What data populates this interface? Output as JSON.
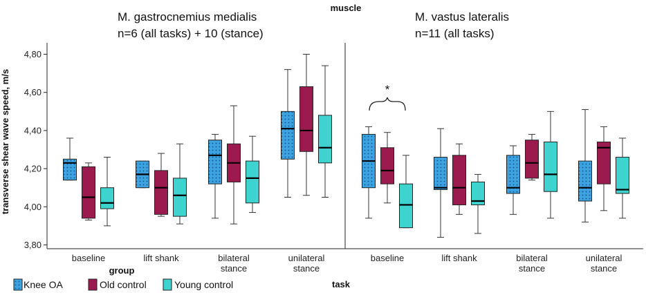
{
  "colors": {
    "knee_oa": "#3da3e0",
    "old_control": "#9b1b4f",
    "young_control": "#3fd3cf",
    "axis": "#222222",
    "whisker": "#333333"
  },
  "chart_data": {
    "type": "boxplot",
    "top_label": "muscle",
    "ylabel": "transverse shear wave speed, m/s",
    "ylim": [
      3.78,
      4.86
    ],
    "y_ticks": [
      3.8,
      4.0,
      4.2,
      4.4,
      4.6,
      4.8
    ],
    "y_tick_labels": [
      "3,80",
      "4,00",
      "4,20",
      "4,40",
      "4,60",
      "4,80"
    ],
    "x_group_label": "group",
    "x_task_label": "task",
    "series_names": [
      "Knee OA",
      "Old control",
      "Young control"
    ],
    "significance": {
      "marker": "*",
      "panel": 1,
      "task": "baseline",
      "between": [
        "Knee OA",
        "Young control"
      ]
    },
    "panels": [
      {
        "title_line1": "M. gastrocnemius medialis",
        "title_line2": "n=6 (all tasks) + 10 (stance)",
        "tasks": [
          {
            "label": [
              "baseline"
            ],
            "boxes": [
              {
                "min": 4.14,
                "q1": 4.14,
                "median": 4.23,
                "q3": 4.25,
                "max": 4.36
              },
              {
                "min": 3.93,
                "q1": 3.94,
                "median": 4.05,
                "q3": 4.21,
                "max": 4.23
              },
              {
                "min": 3.9,
                "q1": 3.99,
                "median": 4.02,
                "q3": 4.1,
                "max": 4.26
              }
            ]
          },
          {
            "label": [
              "lift shank"
            ],
            "boxes": [
              {
                "min": 4.1,
                "q1": 4.1,
                "median": 4.17,
                "q3": 4.24,
                "max": 4.24
              },
              {
                "min": 3.95,
                "q1": 3.96,
                "median": 4.1,
                "q3": 4.19,
                "max": 4.28
              },
              {
                "min": 3.91,
                "q1": 3.95,
                "median": 4.06,
                "q3": 4.15,
                "max": 4.33
              }
            ]
          },
          {
            "label": [
              "bilateral",
              "stance"
            ],
            "boxes": [
              {
                "min": 3.94,
                "q1": 4.12,
                "median": 4.27,
                "q3": 4.35,
                "max": 4.38
              },
              {
                "min": 3.91,
                "q1": 4.13,
                "median": 4.23,
                "q3": 4.33,
                "max": 4.53
              },
              {
                "min": 3.97,
                "q1": 4.02,
                "median": 4.15,
                "q3": 4.24,
                "max": 4.37
              }
            ]
          },
          {
            "label": [
              "unilateral",
              "stance"
            ],
            "boxes": [
              {
                "min": 4.05,
                "q1": 4.25,
                "median": 4.41,
                "q3": 4.5,
                "max": 4.72
              },
              {
                "min": 4.06,
                "q1": 4.29,
                "median": 4.4,
                "q3": 4.63,
                "max": 4.8
              },
              {
                "min": 4.05,
                "q1": 4.23,
                "median": 4.31,
                "q3": 4.48,
                "max": 4.74
              }
            ]
          }
        ]
      },
      {
        "title_line1": "M. vastus lateralis",
        "title_line2": "n=11 (all tasks)",
        "tasks": [
          {
            "label": [
              "baseline"
            ],
            "boxes": [
              {
                "min": 3.94,
                "q1": 4.1,
                "median": 4.24,
                "q3": 4.38,
                "max": 4.42
              },
              {
                "min": 4.02,
                "q1": 4.12,
                "median": 4.19,
                "q3": 4.31,
                "max": 4.39
              },
              {
                "min": 3.89,
                "q1": 3.89,
                "median": 4.01,
                "q3": 4.12,
                "max": 4.27
              }
            ]
          },
          {
            "label": [
              "lift shank"
            ],
            "boxes": [
              {
                "min": 3.84,
                "q1": 4.09,
                "median": 4.1,
                "q3": 4.26,
                "max": 4.41
              },
              {
                "min": 3.96,
                "q1": 4.01,
                "median": 4.1,
                "q3": 4.27,
                "max": 4.33
              },
              {
                "min": 3.86,
                "q1": 4.01,
                "median": 4.03,
                "q3": 4.13,
                "max": 4.17
              }
            ]
          },
          {
            "label": [
              "bilateral",
              "stance"
            ],
            "boxes": [
              {
                "min": 3.96,
                "q1": 4.07,
                "median": 4.1,
                "q3": 4.27,
                "max": 4.32
              },
              {
                "min": 4.14,
                "q1": 4.15,
                "median": 4.23,
                "q3": 4.35,
                "max": 4.38
              },
              {
                "min": 3.94,
                "q1": 4.08,
                "median": 4.17,
                "q3": 4.34,
                "max": 4.5
              }
            ]
          },
          {
            "label": [
              "unilateral",
              "stance"
            ],
            "boxes": [
              {
                "min": 3.92,
                "q1": 4.03,
                "median": 4.1,
                "q3": 4.24,
                "max": 4.51
              },
              {
                "min": 3.98,
                "q1": 4.12,
                "median": 4.31,
                "q3": 4.34,
                "max": 4.42
              },
              {
                "min": 3.94,
                "q1": 4.07,
                "median": 4.09,
                "q3": 4.26,
                "max": 4.36
              }
            ]
          }
        ]
      }
    ]
  }
}
